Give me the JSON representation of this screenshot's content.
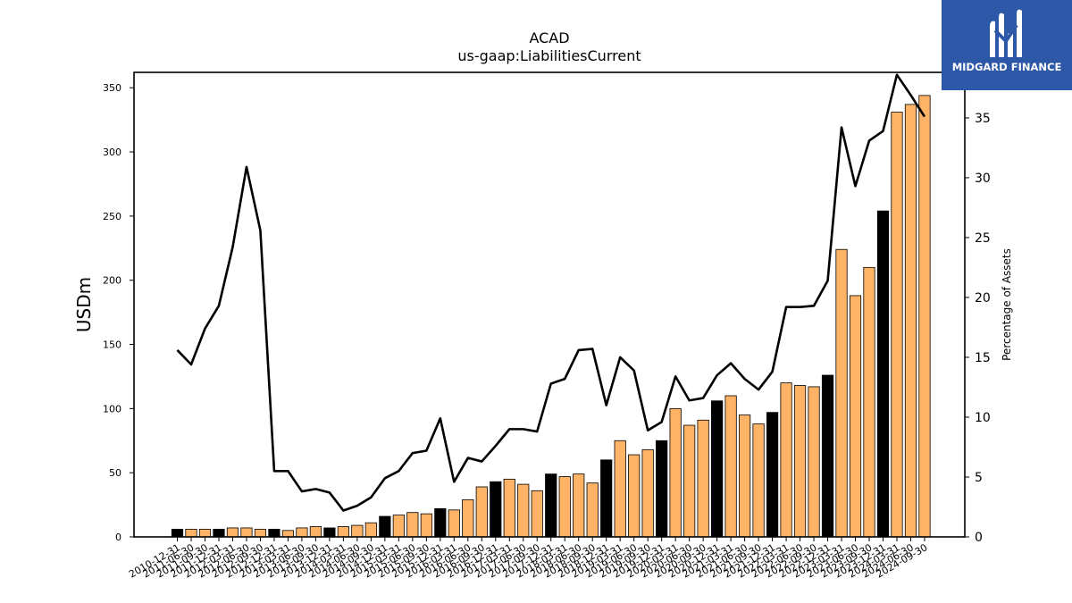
{
  "chart_data": {
    "type": "bar",
    "title": "ACAD",
    "subtitle": "us-gaap:LiabilitiesCurrent",
    "ylabel": "USDm",
    "y2label": "Percentage of Assets",
    "ylim": [
      0,
      362
    ],
    "y2lim": [
      0,
      38.8
    ],
    "yticks": [
      0,
      50,
      100,
      150,
      200,
      250,
      300,
      350
    ],
    "y2ticks": [
      0,
      5,
      10,
      15,
      20,
      25,
      30,
      35
    ],
    "grid": false,
    "legend": "none",
    "colors": {
      "annual": "#000000",
      "quarterly": "#ffb366",
      "line": "#000000",
      "bar_edge": "#000000"
    },
    "categories": [
      "2010-12-31",
      "2011-06-30",
      "2011-09-30",
      "2011-12-31",
      "2012-03-31",
      "2012-06-30",
      "2012-09-30",
      "2012-12-31",
      "2013-03-31",
      "2013-06-30",
      "2013-09-30",
      "2013-12-31",
      "2014-03-31",
      "2014-06-30",
      "2014-09-30",
      "2014-12-31",
      "2015-03-31",
      "2015-06-30",
      "2015-09-30",
      "2015-12-31",
      "2016-03-31",
      "2016-06-30",
      "2016-09-30",
      "2016-12-31",
      "2017-03-31",
      "2017-06-30",
      "2017-09-30",
      "2017-12-31",
      "2018-03-31",
      "2018-06-30",
      "2018-09-30",
      "2018-12-31",
      "2019-03-31",
      "2019-06-30",
      "2019-09-30",
      "2019-12-31",
      "2020-03-31",
      "2020-06-30",
      "2020-09-30",
      "2020-12-31",
      "2021-03-31",
      "2021-06-30",
      "2021-09-30",
      "2021-12-31",
      "2022-03-31",
      "2022-06-30",
      "2022-09-30",
      "2022-12-31",
      "2023-03-31",
      "2023-06-30",
      "2023-09-30",
      "2023-12-31",
      "2024-03-31",
      "2024-06-30",
      "2024-09-30"
    ],
    "series": [
      {
        "values": [
          6,
          6,
          6,
          6,
          7,
          7,
          6,
          6,
          5,
          7,
          8,
          7,
          8,
          9,
          11,
          16,
          17,
          19,
          18,
          22,
          21,
          29,
          39,
          43,
          45,
          41,
          36,
          49,
          47,
          49,
          42,
          60,
          75,
          64,
          68,
          75,
          100,
          87,
          91,
          106,
          110,
          95,
          88,
          97,
          120,
          118,
          117,
          126,
          224,
          188,
          210,
          254,
          331,
          337,
          344
        ]
      },
      {
        "values": [
          15.6,
          14.4,
          17.4,
          19.3,
          24.2,
          30.9,
          25.6,
          5.5,
          5.5,
          3.8,
          4.0,
          3.7,
          2.2,
          2.6,
          3.3,
          4.9,
          5.5,
          7.0,
          7.2,
          9.9,
          4.6,
          6.6,
          6.3,
          7.6,
          9.0,
          9.0,
          8.8,
          12.8,
          13.2,
          15.6,
          15.7,
          11.0,
          15.0,
          13.9,
          8.9,
          9.6,
          13.4,
          11.4,
          11.6,
          13.5,
          14.5,
          13.2,
          12.3,
          13.8,
          19.2,
          19.2,
          19.3,
          21.4,
          34.2,
          29.3,
          33.1,
          33.9,
          38.6,
          36.9,
          35.1
        ]
      }
    ],
    "annual_flags": [
      1,
      0,
      0,
      1,
      0,
      0,
      0,
      1,
      0,
      0,
      0,
      1,
      0,
      0,
      0,
      1,
      0,
      0,
      0,
      1,
      0,
      0,
      0,
      1,
      0,
      0,
      0,
      1,
      0,
      0,
      0,
      1,
      0,
      0,
      0,
      1,
      0,
      0,
      0,
      1,
      0,
      0,
      0,
      1,
      0,
      0,
      0,
      1,
      0,
      0,
      0,
      1,
      0,
      0,
      0
    ]
  },
  "logo": {
    "text": "MIDGARD FINANCE",
    "icon": "midgard-m-logo-icon"
  }
}
